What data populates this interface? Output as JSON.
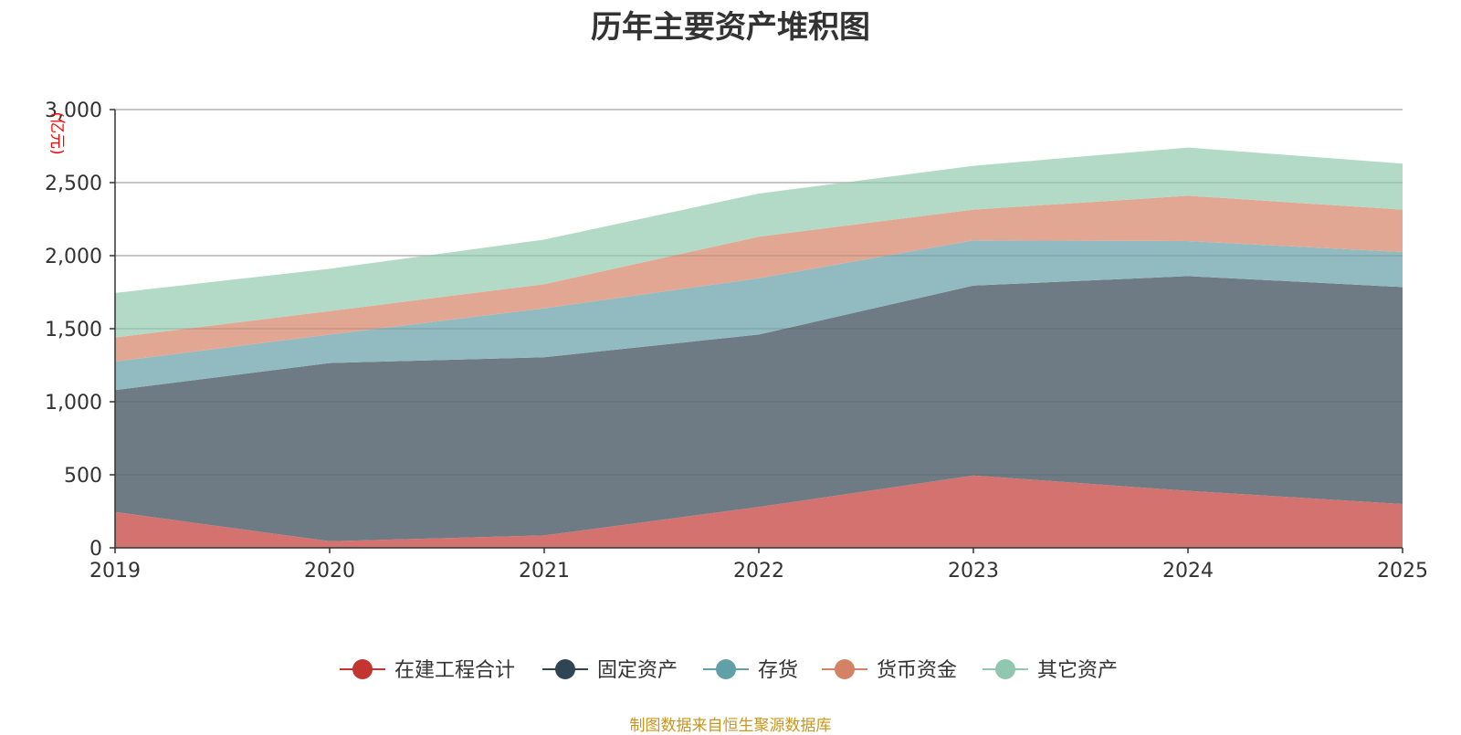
{
  "chart_data": {
    "type": "area",
    "stacked": true,
    "title": "历年主要资产堆积图",
    "unit_label": "(亿元)",
    "source_note": "制图数据来自恒生聚源数据库",
    "categories": [
      "2019",
      "2020",
      "2021",
      "2022",
      "2023",
      "2024",
      "2025"
    ],
    "ylim": [
      0,
      3000
    ],
    "yticks": [
      0,
      500,
      1000,
      1500,
      2000,
      2500,
      3000
    ],
    "ytick_labels": [
      "0",
      "500",
      "1,000",
      "1,500",
      "2,000",
      "2,500",
      "3,000"
    ],
    "grid": true,
    "legend_position": "bottom-center",
    "series": [
      {
        "name": "在建工程合计",
        "values": [
          245,
          45,
          85,
          280,
          495,
          390,
          300
        ],
        "color": "#c23531",
        "fill": "#d4726f"
      },
      {
        "name": "固定资产",
        "values": [
          835,
          1220,
          1220,
          1180,
          1300,
          1470,
          1485
        ],
        "color": "#2f4554",
        "fill": "#6e7b85"
      },
      {
        "name": "存货",
        "values": [
          195,
          195,
          335,
          385,
          310,
          240,
          240
        ],
        "color": "#61a0a8",
        "fill": "#91bbc1"
      },
      {
        "name": "货币资金",
        "values": [
          165,
          160,
          165,
          285,
          210,
          310,
          290
        ],
        "color": "#d48265",
        "fill": "#e2a792"
      },
      {
        "name": "其它资产",
        "values": [
          305,
          290,
          305,
          295,
          300,
          330,
          315
        ],
        "color": "#91c7ae",
        "fill": "#b3dac7"
      }
    ]
  }
}
